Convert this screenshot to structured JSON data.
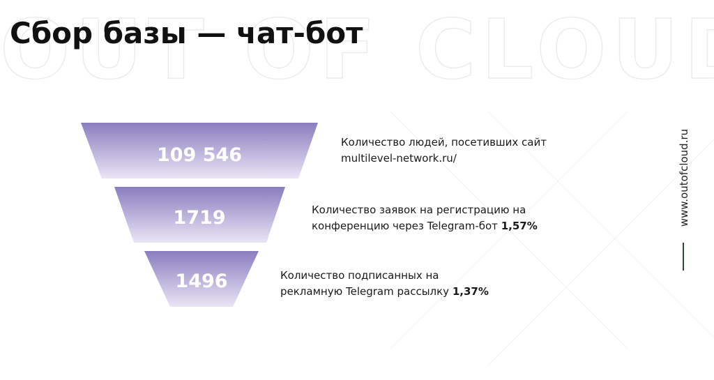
{
  "header": {
    "title": "Сбор базы — чат-бот",
    "watermark": "OUT OF CLOUD"
  },
  "funnel": {
    "levels": [
      {
        "value": "109 546",
        "lines": [
          "Количество людей, посетивших сайт",
          "multilevel-network.ru/"
        ]
      },
      {
        "value": "1719",
        "lines": [
          "Количество заявок на регистрацию на",
          "конференцию через Telegram-бот"
        ],
        "percent": "1,57%"
      },
      {
        "value": "1496",
        "lines": [
          "Количество подписанных на",
          "рекламную Telegram  рассылку"
        ],
        "percent": "1,37%"
      }
    ]
  },
  "side": {
    "url": "www.outofcloud.ru"
  }
}
